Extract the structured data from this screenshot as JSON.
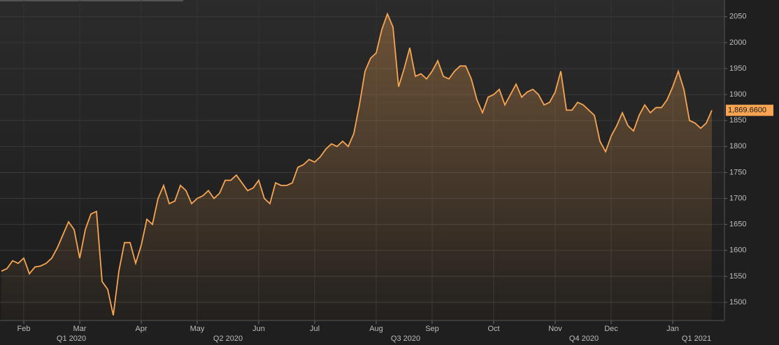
{
  "chart_data": {
    "type": "area",
    "categories": [
      null,
      null,
      null,
      null,
      "Feb",
      null,
      null,
      null,
      null,
      null,
      null,
      null,
      null,
      null,
      "Mar",
      null,
      null,
      null,
      null,
      null,
      null,
      null,
      null,
      null,
      null,
      "Apr",
      null,
      null,
      null,
      null,
      null,
      null,
      null,
      null,
      null,
      "May",
      null,
      null,
      null,
      null,
      null,
      null,
      null,
      null,
      null,
      null,
      "Jun",
      null,
      null,
      null,
      null,
      null,
      null,
      null,
      null,
      null,
      "Jul",
      null,
      null,
      null,
      null,
      null,
      null,
      null,
      null,
      null,
      null,
      "Aug",
      null,
      null,
      null,
      null,
      null,
      null,
      null,
      null,
      null,
      "Sep",
      null,
      null,
      null,
      null,
      null,
      null,
      null,
      null,
      null,
      null,
      "Oct",
      null,
      null,
      null,
      null,
      null,
      null,
      null,
      null,
      null,
      null,
      "Nov",
      null,
      null,
      null,
      null,
      null,
      null,
      null,
      null,
      null,
      "Dec",
      null,
      null,
      null,
      null,
      null,
      null,
      null,
      null,
      null,
      null,
      "Jan",
      null,
      null,
      null,
      null,
      null,
      null,
      null
    ],
    "periods": [
      "Q1 2020",
      "Q2 2020",
      "Q3 2020",
      "Q4 2020",
      "Q1 2021"
    ],
    "series": [
      {
        "color": "#f7a552",
        "values": [
          1560,
          1565,
          1580,
          1575,
          1585,
          1555,
          1568,
          1570,
          1575,
          1585,
          1605,
          1630,
          1655,
          1640,
          1585,
          1640,
          1670,
          1675,
          1540,
          1525,
          1475,
          1560,
          1615,
          1615,
          1575,
          1610,
          1660,
          1650,
          1700,
          1725,
          1690,
          1695,
          1725,
          1715,
          1690,
          1700,
          1705,
          1715,
          1700,
          1710,
          1735,
          1735,
          1745,
          1730,
          1715,
          1720,
          1735,
          1700,
          1690,
          1730,
          1725,
          1725,
          1730,
          1760,
          1765,
          1775,
          1770,
          1780,
          1795,
          1805,
          1800,
          1810,
          1800,
          1825,
          1880,
          1945,
          1970,
          1980,
          2025,
          2055,
          2030,
          1915,
          1950,
          1990,
          1935,
          1940,
          1930,
          1945,
          1965,
          1935,
          1930,
          1945,
          1955,
          1955,
          1930,
          1890,
          1865,
          1895,
          1900,
          1910,
          1880,
          1900,
          1920,
          1895,
          1905,
          1910,
          1900,
          1880,
          1885,
          1905,
          1945,
          1870,
          1870,
          1885,
          1880,
          1870,
          1860,
          1810,
          1790,
          1820,
          1840,
          1865,
          1840,
          1830,
          1860,
          1880,
          1865,
          1875,
          1875,
          1890,
          1915,
          1945,
          1910,
          1850,
          1845,
          1835,
          1845,
          1869.66
        ],
        "last_value_label": "1,869.6600"
      }
    ],
    "ylim": [
      1465,
      2082
    ],
    "yticks": [
      1500,
      1550,
      1600,
      1650,
      1700,
      1750,
      1800,
      1850,
      1900,
      1950,
      2000,
      2050
    ],
    "grid": true
  }
}
